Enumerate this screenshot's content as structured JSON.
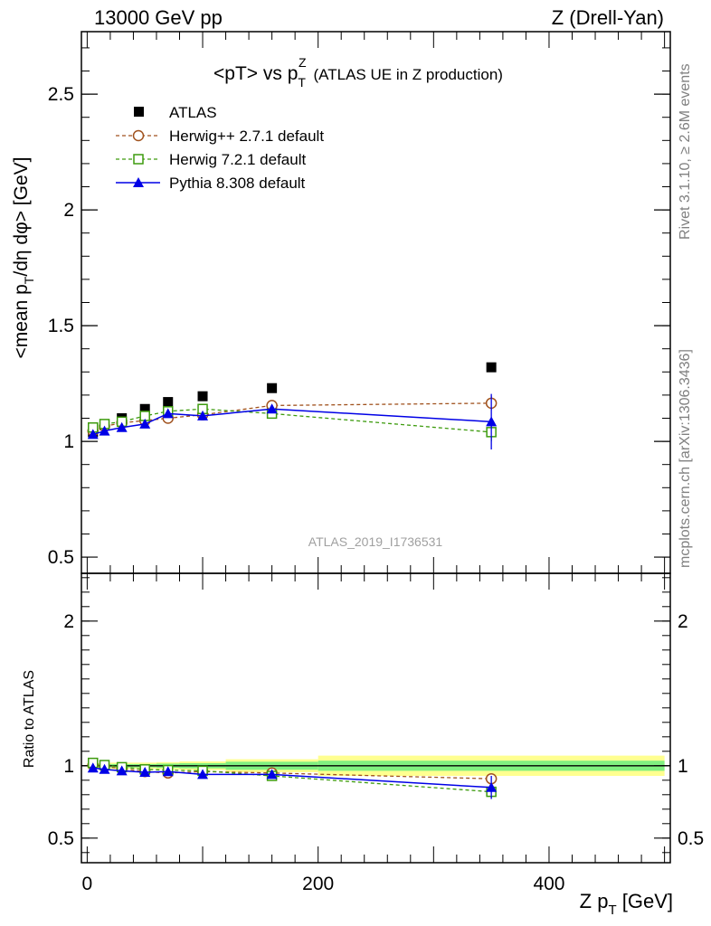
{
  "header": {
    "left": "13000 GeV pp",
    "right": "Z (Drell-Yan)"
  },
  "side_labels": {
    "rivet": "Rivet 3.1.10, ≥ 2.6M events",
    "mcplots": "mcplots.cern.ch [arXiv:1306.3436]"
  },
  "watermark": "ATLAS_2019_I1736531",
  "chart_data": [
    {
      "type": "line",
      "title": "<pT> vs p_T^Z (ATLAS UE in Z production)",
      "title_parts": {
        "main": "<pT> vs p",
        "sub": "T",
        "sup": "Z",
        "rest": "(ATLAS UE in Z production)"
      },
      "ylabel": "<mean p_T/dη dφ> [GeV]",
      "ylabel_parts": {
        "pre": "<mean p",
        "sub": "T",
        "post": "/dη dφ> [GeV]"
      },
      "xlim": [
        -5,
        505
      ],
      "ylim": [
        0.43,
        2.77
      ],
      "yticks": [
        0.5,
        1,
        1.5,
        2,
        2.5
      ],
      "ytick_labels": [
        "0.5",
        "1",
        "1.5",
        "2",
        "2.5"
      ],
      "legend_position": "top-left",
      "x": [
        5,
        15,
        30,
        50,
        70,
        100,
        160,
        350
      ],
      "xerr": [
        5,
        5,
        10,
        10,
        10,
        20,
        40,
        150
      ],
      "series": [
        {
          "name": "ATLAS",
          "marker": "square-filled",
          "color": "#000000",
          "line": "none",
          "values": [
            1.04,
            1.07,
            1.1,
            1.14,
            1.17,
            1.195,
            1.23,
            1.32
          ]
        },
        {
          "name": "Herwig++ 2.7.1 default",
          "marker": "circle-open",
          "color": "#a0521e",
          "line": "dashed",
          "values": [
            1.045,
            1.065,
            1.08,
            1.09,
            1.1,
            1.115,
            1.155,
            1.165
          ],
          "err": [
            0.005,
            0.005,
            0.005,
            0.006,
            0.007,
            0.008,
            0.012,
            0.03
          ]
        },
        {
          "name": "Herwig 7.2.1 default",
          "marker": "square-open",
          "color": "#3d9b0e",
          "line": "dashed",
          "values": [
            1.06,
            1.075,
            1.085,
            1.11,
            1.13,
            1.14,
            1.12,
            1.04
          ],
          "err": [
            0.005,
            0.005,
            0.005,
            0.006,
            0.007,
            0.008,
            0.012,
            0.04
          ]
        },
        {
          "name": "Pythia 8.308 default",
          "marker": "triangle-filled",
          "color": "#0000e6",
          "line": "solid",
          "values": [
            1.03,
            1.045,
            1.06,
            1.075,
            1.12,
            1.11,
            1.14,
            1.085
          ],
          "err": [
            0.005,
            0.005,
            0.006,
            0.007,
            0.008,
            0.01,
            0.015,
            0.12
          ]
        }
      ]
    },
    {
      "type": "line",
      "title": "",
      "ylabel": "Ratio to ATLAS",
      "xlabel": "Z p_T [GeV]",
      "xlabel_parts": {
        "pre": "Z p",
        "sub": "T",
        "post": " [GeV]"
      },
      "xlim": [
        -5,
        505
      ],
      "ylim": [
        0.33,
        2.33
      ],
      "yticks": [
        0.5,
        1,
        2
      ],
      "ytick_labels": [
        "0.5",
        "1",
        "2"
      ],
      "xticks": [
        0,
        200,
        400
      ],
      "xtick_labels": [
        "0",
        "200",
        "400"
      ],
      "reference_line": 1,
      "uncertainty_bands": {
        "x_edges": [
          0,
          10,
          20,
          40,
          60,
          80,
          120,
          200,
          500
        ],
        "stat_half_width": [
          0.01,
          0.01,
          0.012,
          0.012,
          0.015,
          0.018,
          0.028,
          0.035
        ],
        "total_half_width": [
          0.018,
          0.02,
          0.022,
          0.022,
          0.025,
          0.03,
          0.045,
          0.07
        ],
        "stat_color": "#80f080",
        "total_color": "#ffff90"
      },
      "x": [
        5,
        15,
        30,
        50,
        70,
        100,
        160,
        350
      ],
      "series": [
        {
          "name": "Herwig++ 2.7.1 default",
          "marker": "circle-open",
          "color": "#a0521e",
          "line": "dashed",
          "values": [
            1.005,
            0.995,
            0.98,
            0.96,
            0.95,
            0.96,
            0.95,
            0.91
          ],
          "err": [
            0.005,
            0.005,
            0.005,
            0.006,
            0.007,
            0.008,
            0.012,
            0.03
          ]
        },
        {
          "name": "Herwig 7.2.1 default",
          "marker": "square-open",
          "color": "#3d9b0e",
          "line": "dashed",
          "values": [
            1.02,
            1.005,
            0.99,
            0.975,
            0.97,
            0.965,
            0.93,
            0.82
          ],
          "err": [
            0.005,
            0.005,
            0.005,
            0.006,
            0.007,
            0.008,
            0.012,
            0.04
          ]
        },
        {
          "name": "Pythia 8.308 default",
          "marker": "triangle-filled",
          "color": "#0000e6",
          "line": "solid",
          "values": [
            0.985,
            0.975,
            0.965,
            0.955,
            0.96,
            0.94,
            0.94,
            0.85
          ],
          "err": [
            0.005,
            0.005,
            0.006,
            0.007,
            0.008,
            0.01,
            0.015,
            0.08
          ]
        }
      ]
    }
  ]
}
